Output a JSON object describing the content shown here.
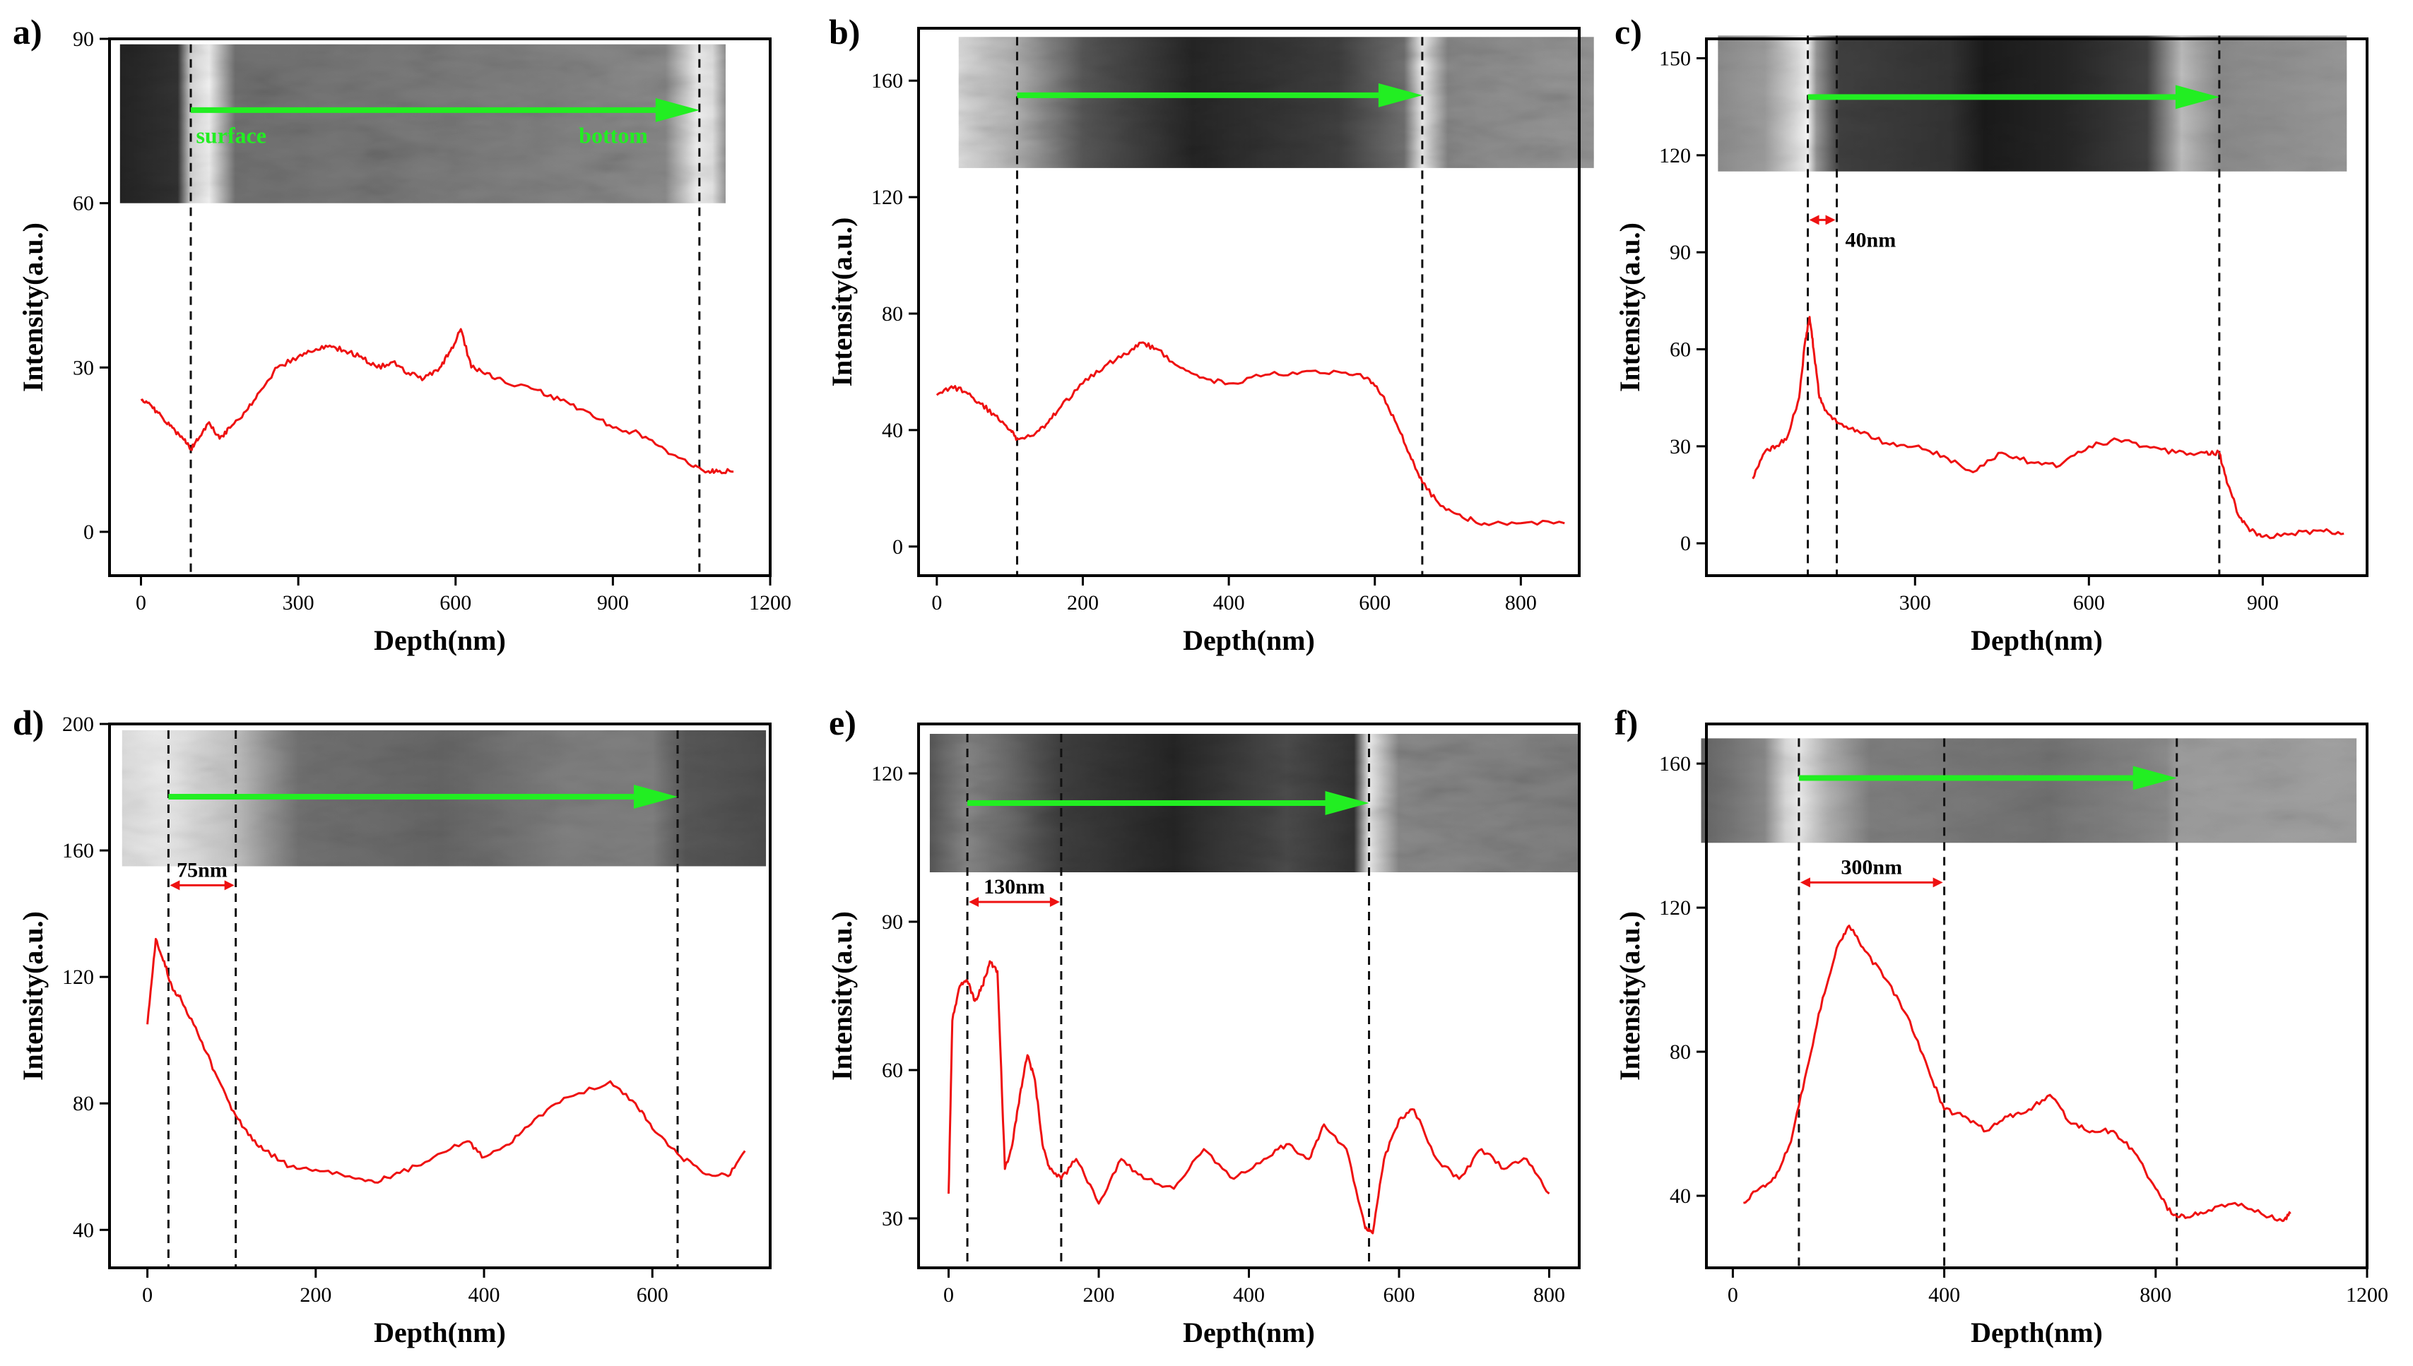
{
  "colors": {
    "trace": "#ee1111",
    "arrow": "#22ee22",
    "marker": "#ee1111",
    "axis": "#000000"
  },
  "chart_data": [
    {
      "type": "line",
      "panel": "a)",
      "title": "",
      "xlabel": "Depth(nm)",
      "ylabel": "Intensity(a.u.)",
      "xlim": [
        -60,
        1200
      ],
      "ylim": [
        -8,
        90
      ],
      "xticks": [
        0,
        300,
        600,
        900,
        1200
      ],
      "yticks": [
        0,
        30,
        60,
        90
      ],
      "grid": false,
      "inset": {
        "y_range": [
          60,
          89
        ],
        "x_range": [
          -40,
          1115
        ],
        "bands": [
          [
            -40,
            0.14
          ],
          [
            70,
            0.2
          ],
          [
            95,
            0.85
          ],
          [
            130,
            0.95
          ],
          [
            180,
            0.45
          ],
          [
            700,
            0.5
          ],
          [
            1000,
            0.55
          ],
          [
            1060,
            0.95
          ],
          [
            1090,
            0.9
          ],
          [
            1115,
            0.6
          ]
        ],
        "texture": 0.4
      },
      "arrow": {
        "x0": 95,
        "x1": 1065,
        "y": 77
      },
      "arrow_labels": [
        {
          "text": "surface",
          "x": 105,
          "y": 71
        },
        {
          "text": "bottom",
          "x": 835,
          "y": 71
        }
      ],
      "dashed_x": [
        95,
        1065
      ],
      "bracket": null,
      "series": [
        {
          "name": "intensity",
          "x": [
            0,
            20,
            40,
            60,
            80,
            95,
            110,
            130,
            150,
            170,
            200,
            230,
            260,
            300,
            330,
            360,
            390,
            420,
            450,
            480,
            510,
            540,
            570,
            590,
            610,
            630,
            660,
            700,
            750,
            800,
            850,
            900,
            950,
            1000,
            1050,
            1080,
            1100,
            1130
          ],
          "y": [
            24,
            23,
            21,
            19,
            17,
            15,
            17,
            20,
            17,
            19,
            22,
            26,
            30,
            32,
            33,
            34,
            33,
            32,
            30,
            31,
            29,
            28,
            30,
            33,
            37,
            30,
            29,
            27,
            26,
            24,
            22,
            19,
            18,
            15,
            12,
            11,
            11,
            11
          ]
        }
      ]
    },
    {
      "type": "line",
      "panel": "b)",
      "title": "",
      "xlabel": "Depth(nm)",
      "ylabel": "Intensity(a.u.)",
      "xlim": [
        -25,
        880
      ],
      "ylim": [
        -10,
        178
      ],
      "xticks": [
        0,
        200,
        400,
        600,
        800
      ],
      "yticks": [
        0,
        40,
        80,
        120,
        160
      ],
      "grid": false,
      "inset": {
        "y_range": [
          130,
          175
        ],
        "x_range": [
          30,
          900
        ],
        "bands": [
          [
            30,
            0.88
          ],
          [
            110,
            0.7
          ],
          [
            200,
            0.35
          ],
          [
            350,
            0.15
          ],
          [
            550,
            0.25
          ],
          [
            640,
            0.45
          ],
          [
            665,
            0.95
          ],
          [
            700,
            0.55
          ],
          [
            900,
            0.6
          ]
        ],
        "texture": 0.45
      },
      "arrow": {
        "x0": 110,
        "x1": 665,
        "y": 155
      },
      "arrow_labels": [],
      "dashed_x": [
        110,
        665
      ],
      "bracket": null,
      "series": [
        {
          "name": "intensity",
          "x": [
            0,
            20,
            40,
            60,
            80,
            100,
            110,
            130,
            150,
            170,
            200,
            230,
            260,
            280,
            300,
            330,
            360,
            400,
            450,
            500,
            550,
            590,
            610,
            630,
            650,
            665,
            690,
            720,
            750,
            800,
            860
          ],
          "y": [
            52,
            55,
            53,
            49,
            45,
            40,
            37,
            38,
            42,
            48,
            56,
            62,
            66,
            70,
            68,
            62,
            58,
            56,
            59,
            60,
            60,
            58,
            52,
            42,
            30,
            22,
            14,
            10,
            8,
            8,
            8
          ]
        }
      ]
    },
    {
      "type": "line",
      "panel": "c)",
      "title": "",
      "xlabel": "Depth(nm)",
      "ylabel": "Intensity(a.u.)",
      "xlim": [
        -60,
        1080
      ],
      "ylim": [
        -10,
        156
      ],
      "xticks": [
        300,
        600,
        900
      ],
      "yticks": [
        0,
        30,
        60,
        90,
        120,
        150
      ],
      "grid": false,
      "inset": {
        "y_range": [
          115,
          157
        ],
        "x_range": [
          -40,
          1045
        ],
        "bands": [
          [
            -40,
            0.55
          ],
          [
            40,
            0.62
          ],
          [
            90,
            0.85
          ],
          [
            115,
            0.97
          ],
          [
            130,
            0.6
          ],
          [
            170,
            0.25
          ],
          [
            360,
            0.2
          ],
          [
            420,
            0.1
          ],
          [
            560,
            0.15
          ],
          [
            700,
            0.25
          ],
          [
            760,
            0.75
          ],
          [
            830,
            0.55
          ],
          [
            1045,
            0.6
          ]
        ],
        "texture": 0.25
      },
      "arrow": {
        "x0": 115,
        "x1": 825,
        "y": 138
      },
      "arrow_labels": [],
      "dashed_x": [
        115,
        165,
        825
      ],
      "bracket": {
        "x0": 115,
        "x1": 165,
        "y": 100,
        "label": "40nm",
        "align": "right"
      },
      "series": [
        {
          "name": "intensity",
          "x": [
            20,
            40,
            60,
            80,
            100,
            110,
            118,
            125,
            135,
            150,
            170,
            200,
            250,
            300,
            350,
            400,
            450,
            500,
            550,
            600,
            650,
            700,
            750,
            800,
            825,
            840,
            860,
            880,
            900,
            950,
            1000,
            1040
          ],
          "y": [
            20,
            28,
            30,
            33,
            45,
            62,
            70,
            60,
            45,
            40,
            37,
            35,
            31,
            30,
            27,
            22,
            28,
            25,
            24,
            30,
            32,
            30,
            28,
            28,
            28,
            18,
            8,
            4,
            2,
            3,
            4,
            3
          ]
        }
      ]
    },
    {
      "type": "line",
      "panel": "d)",
      "title": "",
      "xlabel": "Depth(nm)",
      "ylabel": "Intensity(a.u.)",
      "xlim": [
        -45,
        740
      ],
      "ylim": [
        28,
        200
      ],
      "xticks": [
        0,
        200,
        400,
        600
      ],
      "yticks": [
        40,
        80,
        120,
        160,
        200
      ],
      "grid": false,
      "inset": {
        "y_range": [
          155,
          198
        ],
        "x_range": [
          -30,
          735
        ],
        "bands": [
          [
            -30,
            0.88
          ],
          [
            20,
            0.93
          ],
          [
            60,
            0.86
          ],
          [
            100,
            0.78
          ],
          [
            140,
            0.6
          ],
          [
            180,
            0.45
          ],
          [
            350,
            0.4
          ],
          [
            500,
            0.5
          ],
          [
            600,
            0.5
          ],
          [
            640,
            0.35
          ],
          [
            735,
            0.3
          ]
        ],
        "texture": 0.3
      },
      "arrow": {
        "x0": 25,
        "x1": 630,
        "y": 177
      },
      "arrow_labels": [],
      "dashed_x": [
        25,
        105,
        630
      ],
      "bracket": {
        "x0": 25,
        "x1": 105,
        "y": 149,
        "label": "75nm",
        "align": "center"
      },
      "series": [
        {
          "name": "intensity",
          "x": [
            0,
            10,
            20,
            30,
            40,
            60,
            80,
            100,
            120,
            140,
            170,
            200,
            240,
            270,
            300,
            340,
            380,
            400,
            430,
            460,
            500,
            550,
            580,
            600,
            630,
            660,
            690,
            710
          ],
          "y": [
            105,
            132,
            125,
            116,
            113,
            102,
            90,
            78,
            70,
            65,
            60,
            59,
            57,
            55,
            58,
            63,
            68,
            63,
            67,
            75,
            82,
            87,
            80,
            72,
            64,
            58,
            57,
            65
          ]
        }
      ]
    },
    {
      "type": "line",
      "panel": "e)",
      "title": "",
      "xlabel": "Depth(nm)",
      "ylabel": "Intensity(a.u.)",
      "xlim": [
        -40,
        840
      ],
      "ylim": [
        20,
        130
      ],
      "xticks": [
        0,
        200,
        400,
        600,
        800
      ],
      "yticks": [
        30,
        60,
        90,
        120
      ],
      "grid": false,
      "inset": {
        "y_range": [
          100,
          128
        ],
        "x_range": [
          -25,
          840
        ],
        "bands": [
          [
            -25,
            0.35
          ],
          [
            25,
            0.55
          ],
          [
            90,
            0.4
          ],
          [
            150,
            0.25
          ],
          [
            300,
            0.15
          ],
          [
            450,
            0.3
          ],
          [
            540,
            0.2
          ],
          [
            560,
            0.95
          ],
          [
            600,
            0.55
          ],
          [
            840,
            0.5
          ]
        ],
        "texture": 0.45
      },
      "arrow": {
        "x0": 25,
        "x1": 560,
        "y": 114
      },
      "arrow_labels": [],
      "dashed_x": [
        25,
        150,
        560
      ],
      "bracket": {
        "x0": 25,
        "x1": 150,
        "y": 94,
        "label": "130nm",
        "align": "center"
      },
      "series": [
        {
          "name": "intensity",
          "x": [
            0,
            5,
            15,
            25,
            35,
            45,
            55,
            65,
            75,
            85,
            95,
            105,
            115,
            125,
            135,
            150,
            170,
            200,
            230,
            260,
            300,
            340,
            380,
            420,
            450,
            480,
            500,
            530,
            555,
            565,
            580,
            600,
            620,
            650,
            680,
            710,
            740,
            770,
            800
          ],
          "y": [
            35,
            70,
            77,
            78,
            74,
            77,
            82,
            80,
            40,
            45,
            55,
            63,
            58,
            45,
            40,
            38,
            42,
            33,
            42,
            38,
            36,
            44,
            38,
            42,
            45,
            42,
            49,
            44,
            28,
            27,
            42,
            50,
            52,
            42,
            38,
            44,
            40,
            42,
            35
          ]
        }
      ]
    },
    {
      "type": "line",
      "panel": "f)",
      "title": "",
      "xlabel": "Depth(nm)",
      "ylabel": "Intensity(a.u.)",
      "xlim": [
        -50,
        1200
      ],
      "ylim": [
        20,
        171
      ],
      "xticks": [
        0,
        400,
        800,
        1200
      ],
      "yticks": [
        40,
        80,
        120,
        160
      ],
      "grid": false,
      "inset": {
        "y_range": [
          138,
          167
        ],
        "x_range": [
          -60,
          1180
        ],
        "bands": [
          [
            -60,
            0.4
          ],
          [
            60,
            0.55
          ],
          [
            100,
            0.85
          ],
          [
            125,
            0.92
          ],
          [
            180,
            0.7
          ],
          [
            260,
            0.5
          ],
          [
            600,
            0.45
          ],
          [
            820,
            0.55
          ],
          [
            840,
            0.62
          ],
          [
            1180,
            0.63
          ]
        ],
        "texture": 0.25
      },
      "arrow": {
        "x0": 125,
        "x1": 840,
        "y": 156
      },
      "arrow_labels": [],
      "dashed_x": [
        125,
        400,
        840
      ],
      "bracket": {
        "x0": 125,
        "x1": 400,
        "y": 127,
        "label": "300nm",
        "align": "center"
      },
      "series": [
        {
          "name": "intensity",
          "x": [
            20,
            50,
            80,
            110,
            140,
            170,
            200,
            220,
            250,
            290,
            330,
            370,
            400,
            440,
            480,
            520,
            560,
            600,
            640,
            680,
            720,
            760,
            800,
            830,
            860,
            900,
            950,
            1000,
            1040,
            1055
          ],
          "y": [
            38,
            42,
            45,
            55,
            75,
            95,
            110,
            115,
            108,
            100,
            90,
            75,
            64,
            62,
            58,
            62,
            64,
            68,
            60,
            58,
            58,
            52,
            42,
            35,
            34,
            36,
            38,
            35,
            33,
            35
          ]
        }
      ]
    }
  ]
}
